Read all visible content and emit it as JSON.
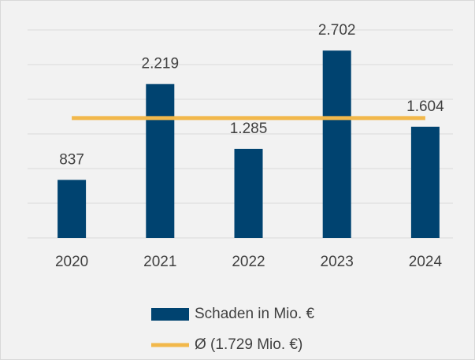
{
  "chart_data": {
    "type": "bar",
    "categories": [
      "2020",
      "2021",
      "2022",
      "2023",
      "2024"
    ],
    "series": [
      {
        "name": "Schaden in Mio. €",
        "color": "#004370",
        "values": [
          837,
          2219,
          1285,
          2702,
          1604
        ],
        "value_labels": [
          "837",
          "2.219",
          "1.285",
          "2.702",
          "1.604"
        ]
      }
    ],
    "average_line": {
      "name": "Ø (1.729 Mio. €)",
      "color": "#f2b84b",
      "value": 1729
    },
    "ylim": [
      0,
      3000
    ],
    "yticks": [
      0,
      500,
      1000,
      1500,
      2000,
      2500,
      3000
    ],
    "grid": true
  }
}
